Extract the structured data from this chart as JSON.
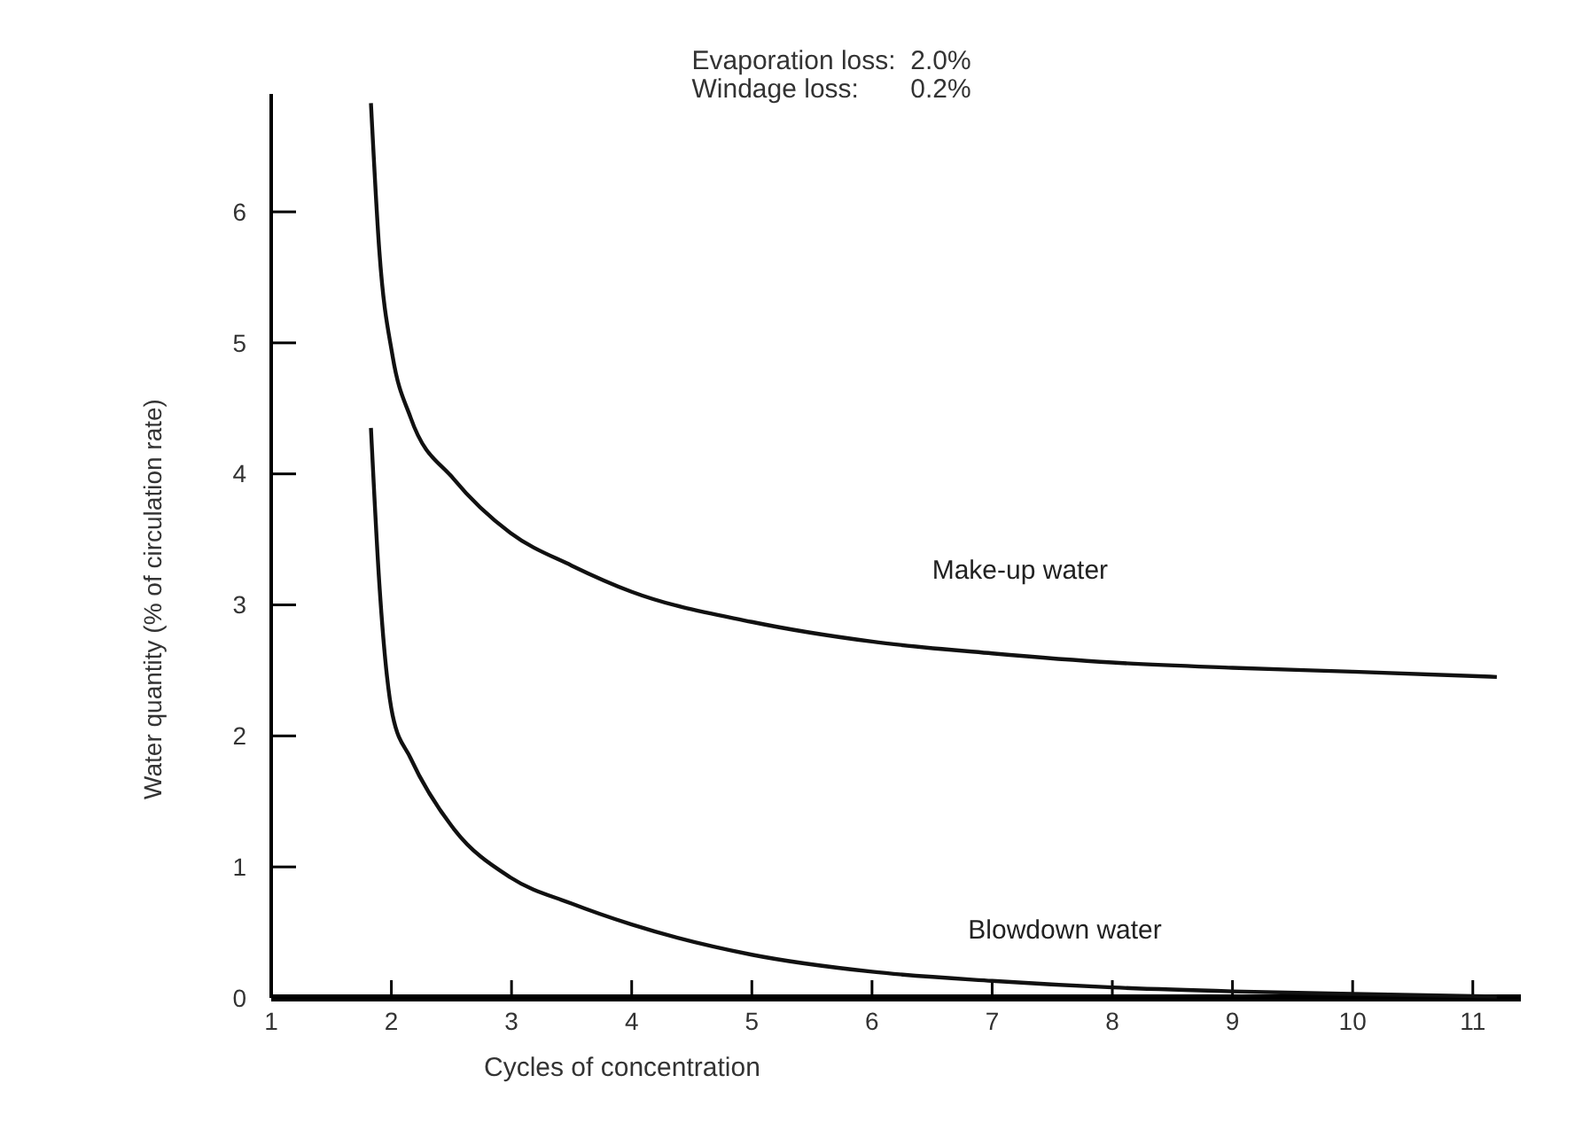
{
  "chart_data": {
    "type": "line",
    "xlabel": "Cycles of concentration",
    "ylabel": "Water quantity (% of circulation rate)",
    "annotations": [
      "Evaporation loss:  2.0%",
      "Windage loss:       0.2%"
    ],
    "xlim": [
      1,
      11.4
    ],
    "xticks": [
      1,
      2,
      3,
      4,
      5,
      6,
      7,
      8,
      9,
      10,
      11
    ],
    "ylim": [
      0,
      6.9
    ],
    "yticks": [
      0,
      1,
      2,
      3,
      4,
      5,
      6
    ],
    "grid": false,
    "marker": "none",
    "line_style": "solid",
    "series": [
      {
        "name": "Make-up water",
        "color": "#111111",
        "x": [
          1.83,
          1.9,
          2.01,
          2.16,
          2.52,
          2.99,
          3.5,
          4,
          5,
          6,
          7,
          8,
          9,
          10,
          11.2
        ],
        "values": [
          6.83,
          5.7,
          4.9,
          4.43,
          3.96,
          3.55,
          3.3,
          3.1,
          2.87,
          2.72,
          2.63,
          2.56,
          2.52,
          2.49,
          2.45
        ]
      },
      {
        "name": "Blowdown water",
        "color": "#111111",
        "x": [
          1.83,
          1.9,
          2.01,
          2.16,
          2.52,
          2.99,
          3.5,
          4,
          5,
          6,
          7,
          8,
          9,
          10,
          11.2
        ],
        "values": [
          4.35,
          3.16,
          2.16,
          1.83,
          1.29,
          0.92,
          0.72,
          0.56,
          0.33,
          0.2,
          0.13,
          0.08,
          0.05,
          0.03,
          0.01
        ]
      }
    ]
  }
}
